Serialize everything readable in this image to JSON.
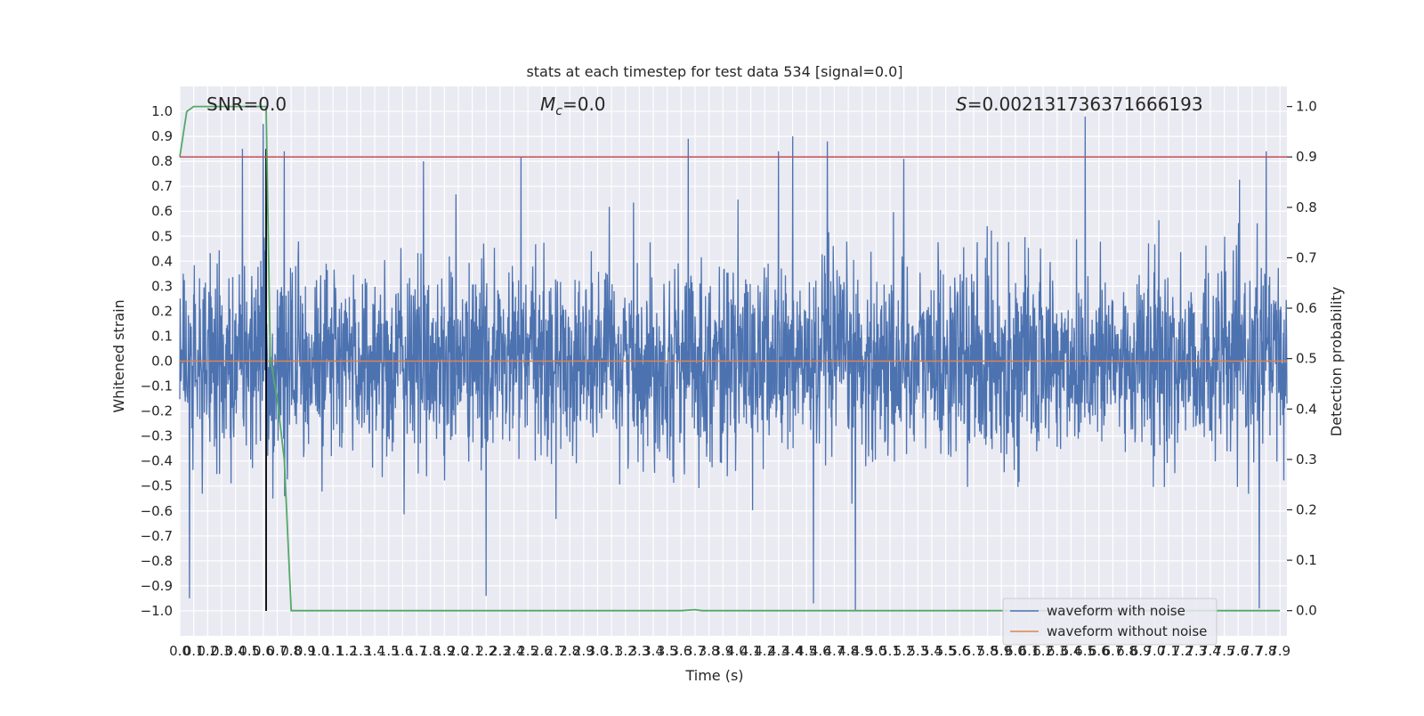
{
  "chart_data": {
    "type": "line",
    "title": "stats at each timestep for test data 534 [signal=0.0]",
    "xlabel": "Time (s)",
    "ylabel": "Whitened strain",
    "y2label": "Detection probability",
    "xlim": [
      0.0,
      7.95
    ],
    "ylim": [
      -1.1,
      1.1
    ],
    "y2lim": [
      -0.05,
      1.04
    ],
    "x_ticks": [
      0.0,
      0.1,
      0.2,
      0.3,
      0.4,
      0.5,
      0.6,
      0.7,
      0.8,
      0.9,
      1.0,
      1.1,
      1.2,
      1.3,
      1.4,
      1.5,
      1.6,
      1.7,
      1.8,
      1.9,
      2.0,
      2.1,
      2.2,
      2.3,
      2.4,
      2.5,
      2.6,
      2.7,
      2.8,
      2.9,
      3.0,
      3.1,
      3.2,
      3.3,
      3.4,
      3.5,
      3.6,
      3.7,
      3.8,
      3.9,
      4.0,
      4.1,
      4.2,
      4.3,
      4.4,
      4.5,
      4.6,
      4.7,
      4.8,
      4.9,
      5.0,
      5.1,
      5.2,
      5.3,
      5.4,
      5.5,
      5.6,
      5.7,
      5.8,
      5.9,
      6.0,
      6.1,
      6.2,
      6.3,
      6.4,
      6.5,
      6.6,
      6.7,
      6.8,
      6.9,
      7.0,
      7.1,
      7.2,
      7.3,
      7.4,
      7.5,
      7.6,
      7.7,
      7.8,
      7.9
    ],
    "x_tick_labels": [
      "0.0",
      "0.1",
      "0.2",
      "0.3",
      "0.4",
      "0.5",
      "0.6",
      "0.7",
      "0.8",
      "0.9",
      "1.0",
      "1.1",
      "1.2",
      "1.3",
      "1.4",
      "1.5",
      "1.6",
      "1.7",
      "1.8",
      "1.9",
      "2.0",
      "2.1",
      "2.2",
      "2.3",
      "2.4",
      "2.5",
      "2.6",
      "2.7",
      "2.8",
      "2.9",
      "3.0",
      "3.1",
      "3.2",
      "3.3",
      "3.4",
      "3.5",
      "3.6",
      "3.7",
      "3.8",
      "3.9",
      "4.0",
      "4.1",
      "4.2",
      "4.3",
      "4.4",
      "4.5",
      "4.6",
      "4.7",
      "4.8",
      "4.9",
      "5.0",
      "5.1",
      "5.2",
      "5.3",
      "5.4",
      "5.5",
      "5.6",
      "5.7",
      "5.8",
      "5.9",
      "6.0",
      "6.1",
      "6.2",
      "6.3",
      "6.4",
      "6.5",
      "6.6",
      "6.7",
      "6.8",
      "6.9",
      "7.0",
      "7.1",
      "7.2",
      "7.3",
      "7.4",
      "7.5",
      "7.6",
      "7.7",
      "7.8",
      "7.9"
    ],
    "y_ticks": [
      -1.0,
      -0.9,
      -0.8,
      -0.7,
      -0.6,
      -0.5,
      -0.4,
      -0.3,
      -0.2,
      -0.1,
      0.0,
      0.1,
      0.2,
      0.3,
      0.4,
      0.5,
      0.6,
      0.7,
      0.8,
      0.9,
      1.0
    ],
    "y_tick_labels": [
      "−1.0",
      "−0.9",
      "−0.8",
      "−0.7",
      "−0.6",
      "−0.5",
      "−0.4",
      "−0.3",
      "−0.2",
      "−0.1",
      "0.0",
      "0.1",
      "0.2",
      "0.3",
      "0.4",
      "0.5",
      "0.6",
      "0.7",
      "0.8",
      "0.9",
      "1.0"
    ],
    "y2_ticks": [
      0.0,
      0.1,
      0.2,
      0.3,
      0.4,
      0.5,
      0.6,
      0.7,
      0.8,
      0.9,
      1.0
    ],
    "y2_tick_labels": [
      "0.0",
      "0.1",
      "0.2",
      "0.3",
      "0.4",
      "0.5",
      "0.6",
      "0.7",
      "0.8",
      "0.9",
      "1.0"
    ],
    "grid": true,
    "legend_position": "bottom-right",
    "annotations": {
      "snr": "SNR=0.0",
      "mc_symbol": "M",
      "mc_sub": "c",
      "mc_value": "=0.0",
      "s_symbol": "S",
      "s_value": "=0.00213173637166619​3"
    },
    "series": [
      {
        "name": "waveform with noise",
        "axis": "left",
        "color": "#4c72b0",
        "style": "dense noise",
        "x_range": [
          0.0,
          7.95
        ],
        "typical_envelope": [
          -0.45,
          0.45
        ],
        "peak_values": [
          {
            "x": 0.45,
            "y": 0.85
          },
          {
            "x": 0.6,
            "y": 0.95
          },
          {
            "x": 0.75,
            "y": 0.84
          },
          {
            "x": 1.75,
            "y": 0.8
          },
          {
            "x": 2.45,
            "y": 0.82
          },
          {
            "x": 3.65,
            "y": 0.89
          },
          {
            "x": 4.3,
            "y": 0.84
          },
          {
            "x": 4.4,
            "y": 0.9
          },
          {
            "x": 4.65,
            "y": 0.88
          },
          {
            "x": 5.2,
            "y": 0.81
          },
          {
            "x": 6.5,
            "y": 0.98
          },
          {
            "x": 7.8,
            "y": 0.84
          }
        ],
        "trough_values": [
          {
            "x": 0.07,
            "y": -0.95
          },
          {
            "x": 2.2,
            "y": -0.94
          },
          {
            "x": 4.55,
            "y": -0.97
          },
          {
            "x": 4.85,
            "y": -1.0
          },
          {
            "x": 7.75,
            "y": -0.99
          }
        ]
      },
      {
        "name": "waveform without noise",
        "axis": "left",
        "color": "#dd8452",
        "x": [
          0.0,
          7.95
        ],
        "y": [
          0.0,
          0.0
        ]
      },
      {
        "name": "",
        "axis": "right",
        "color": "#55a868",
        "x": [
          0.0,
          0.05,
          0.1,
          0.2,
          0.3,
          0.4,
          0.5,
          0.62,
          0.65,
          0.7,
          0.75,
          0.8,
          3.6,
          3.7,
          3.75,
          3.8,
          7.9
        ],
        "y": [
          0.9,
          0.99,
          1.0,
          1.0,
          1.0,
          1.0,
          1.0,
          1.0,
          0.5,
          0.42,
          0.3,
          0.0,
          0.0,
          0.002,
          0.0,
          0.0,
          0.0
        ]
      },
      {
        "name": "",
        "axis": "right",
        "color": "#c44e52",
        "x": [
          0.0,
          7.95
        ],
        "y": [
          0.9,
          0.9
        ]
      }
    ],
    "vertical_line": {
      "x": 0.62,
      "color": "#000000",
      "y_from": -1.0,
      "y_to": 0.85
    }
  }
}
